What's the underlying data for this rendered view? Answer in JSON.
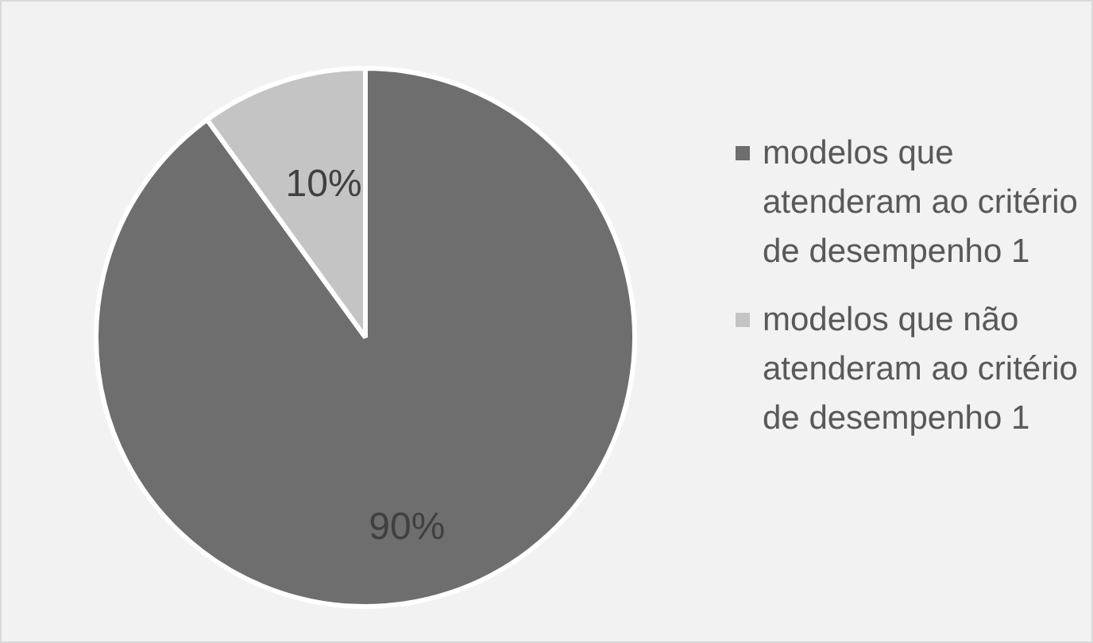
{
  "chart_data": {
    "type": "pie",
    "categories": [
      "modelos que atenderam ao critério de desempenho 1",
      "modelos que não atenderam ao critério de desempenho 1"
    ],
    "values": [
      90,
      10
    ],
    "colors": [
      "#6e6e6e",
      "#c4c4c4"
    ],
    "value_labels": [
      "90%",
      "10%"
    ],
    "legend": "right"
  }
}
